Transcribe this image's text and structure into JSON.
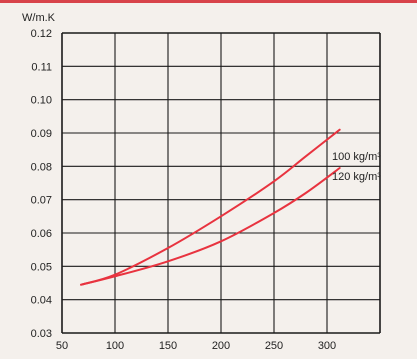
{
  "colors": {
    "accent": "#d8434a",
    "background": "#f4f0ec",
    "grid": "#1a1a1a",
    "series": "#e8333f"
  },
  "chart_data": {
    "type": "line",
    "title": "",
    "ylabel": "W/m.K",
    "xlabel": "",
    "xlim": [
      50,
      350
    ],
    "ylim": [
      0.03,
      0.12
    ],
    "x_ticks": [
      "50",
      "100",
      "150",
      "200",
      "250",
      "300"
    ],
    "y_ticks": [
      "0.03",
      "0.04",
      "0.05",
      "0.06",
      "0.07",
      "0.08",
      "0.09",
      "0.10",
      "0.11",
      "0.12"
    ],
    "grid": true,
    "series": [
      {
        "name": "100 kg/m³",
        "x": [
          68,
          100,
          150,
          200,
          250,
          280,
          312
        ],
        "y": [
          0.0445,
          0.0475,
          0.0555,
          0.065,
          0.0755,
          0.083,
          0.091
        ]
      },
      {
        "name": "120 kg/m³",
        "x": [
          68,
          100,
          150,
          200,
          250,
          280,
          312
        ],
        "y": [
          0.0445,
          0.047,
          0.0515,
          0.0575,
          0.066,
          0.072,
          0.0795
        ]
      }
    ],
    "annotations": [
      {
        "text": "100 kg/m³",
        "series": 0
      },
      {
        "text": "120 kg/m³",
        "series": 1
      }
    ]
  }
}
